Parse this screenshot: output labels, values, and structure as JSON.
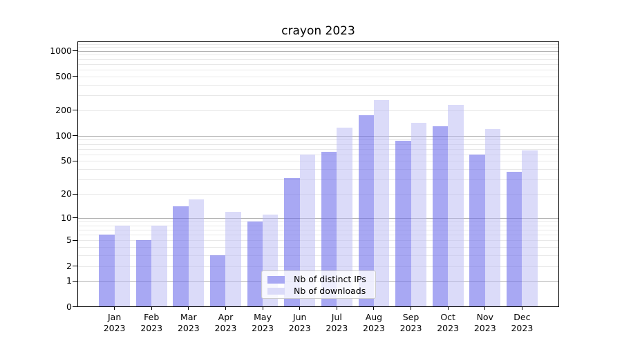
{
  "chart_data": {
    "type": "bar",
    "title": "crayon 2023",
    "months": [
      "Jan",
      "Feb",
      "Mar",
      "Apr",
      "May",
      "Jun",
      "Jul",
      "Aug",
      "Sep",
      "Oct",
      "Nov",
      "Dec"
    ],
    "year": "2023",
    "series": [
      {
        "name": "Nb of distinct IPs",
        "values": [
          6,
          5,
          14,
          3,
          9,
          31,
          65,
          175,
          88,
          130,
          60,
          37
        ],
        "bar_color": "rgba(110,110,235,0.6)",
        "legend_color": "#a8a8f3"
      },
      {
        "name": "Nb of downloads",
        "values": [
          8,
          8,
          17,
          12,
          11,
          60,
          125,
          265,
          143,
          230,
          120,
          67
        ],
        "bar_color": "rgba(183,183,243,0.5)",
        "legend_color": "#dbdbf9"
      }
    ],
    "y_ticks": [
      0,
      1,
      2,
      5,
      10,
      20,
      50,
      100,
      200,
      500,
      1000
    ],
    "y_scale": "log10(1+v)",
    "y_max": 1300,
    "xlabel": "",
    "ylabel": "",
    "grid": "horizontal major+minor",
    "legend_position": "lower center"
  }
}
